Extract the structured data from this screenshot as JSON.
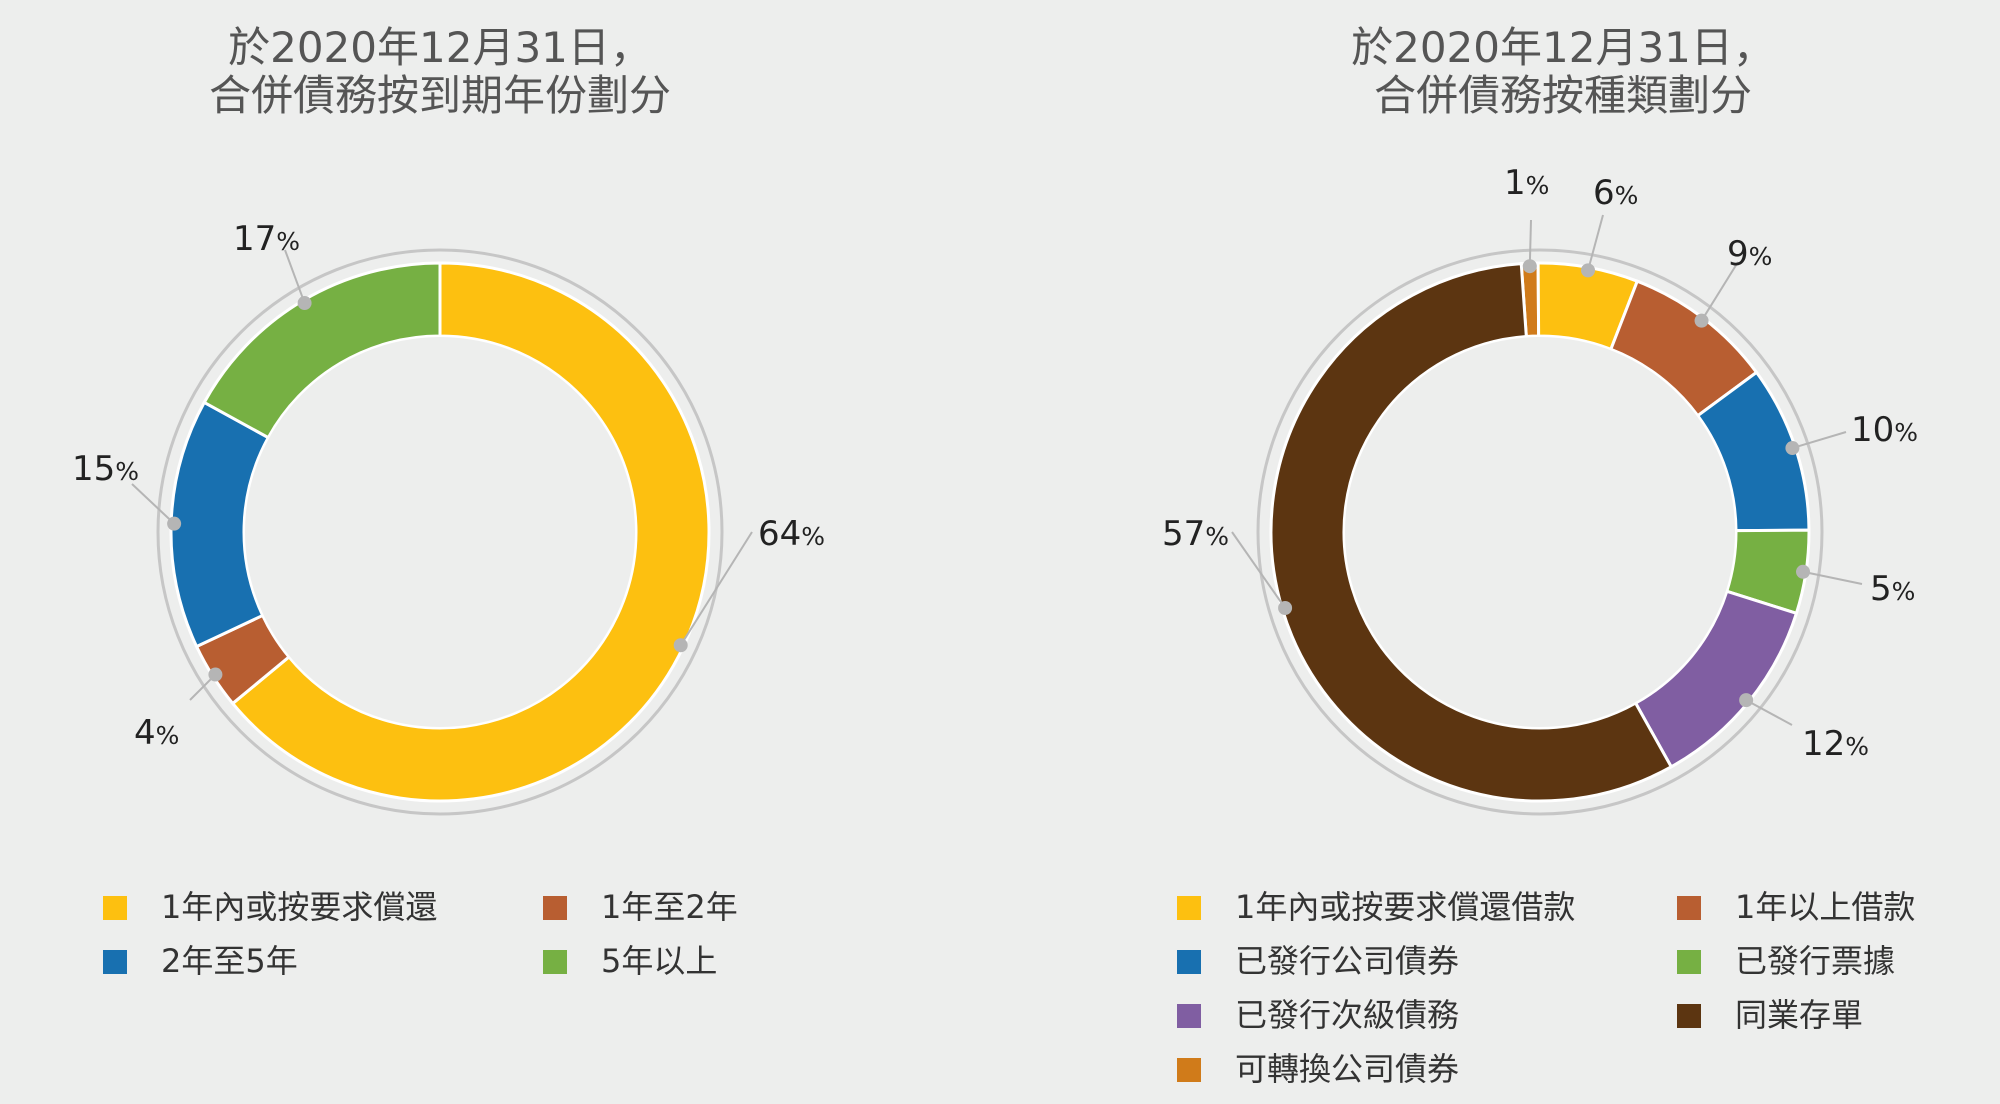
{
  "chart_data": [
    {
      "type": "pie",
      "title_lines": [
        "於2020年12月31日，",
        "合併債務按到期年份劃分"
      ],
      "percent_symbol": "%",
      "slices": [
        {
          "label": "1年內或按要求償還",
          "value": 64,
          "color": "#fdc010"
        },
        {
          "label": "1年至2年",
          "value": 4,
          "color": "#b85e31"
        },
        {
          "label": "2年至5年",
          "value": 15,
          "color": "#1870b0"
        },
        {
          "label": "5年以上",
          "value": 17,
          "color": "#76b043"
        }
      ],
      "legend_order": [
        0,
        1,
        2,
        3
      ]
    },
    {
      "type": "pie",
      "title_lines": [
        "於2020年12月31日，",
        "合併債務按種類劃分"
      ],
      "percent_symbol": "%",
      "slices": [
        {
          "label": "可轉換公司債券",
          "value": 1,
          "color": "#d07b1a"
        },
        {
          "label": "1年內或按要求償還借款",
          "value": 6,
          "color": "#fdc010"
        },
        {
          "label": "1年以上借款",
          "value": 9,
          "color": "#b85e31"
        },
        {
          "label": "已發行公司債券",
          "value": 10,
          "color": "#1870b0"
        },
        {
          "label": "已發行票據",
          "value": 5,
          "color": "#76b043"
        },
        {
          "label": "已發行次級債務",
          "value": 12,
          "color": "#805ea2"
        },
        {
          "label": "同業存單",
          "value": 57,
          "color": "#5c3511"
        }
      ],
      "legend_order": [
        1,
        2,
        3,
        4,
        5,
        6,
        0
      ]
    }
  ]
}
